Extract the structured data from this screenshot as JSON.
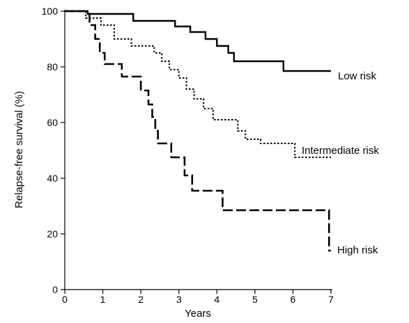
{
  "chart_data": {
    "type": "line",
    "step": true,
    "title": "",
    "xlabel": "Years",
    "ylabel": "Relapse-free survival (%)",
    "xlim": [
      0,
      7
    ],
    "ylim": [
      0,
      100
    ],
    "xticks": [
      0,
      1,
      2,
      3,
      4,
      5,
      6,
      7
    ],
    "yticks": [
      0,
      20,
      40,
      60,
      80,
      100
    ],
    "grid": false,
    "legend": "inline labels at line ends",
    "series": [
      {
        "name": "Low risk",
        "line_style": "solid",
        "color": "#000000",
        "points": [
          [
            0,
            100
          ],
          [
            0.6,
            100
          ],
          [
            0.6,
            99
          ],
          [
            1.8,
            99
          ],
          [
            1.8,
            96.5
          ],
          [
            2.9,
            96.5
          ],
          [
            2.9,
            94.5
          ],
          [
            3.3,
            94.5
          ],
          [
            3.3,
            92.5
          ],
          [
            3.7,
            92.5
          ],
          [
            3.7,
            90
          ],
          [
            4.0,
            90
          ],
          [
            4.0,
            87.5
          ],
          [
            4.3,
            87.5
          ],
          [
            4.3,
            85
          ],
          [
            4.45,
            85
          ],
          [
            4.45,
            82
          ],
          [
            5.75,
            82
          ],
          [
            5.75,
            78.5
          ],
          [
            7.0,
            78.5
          ]
        ]
      },
      {
        "name": "Intermediate risk",
        "line_style": "dotted",
        "color": "#000000",
        "points": [
          [
            0,
            100
          ],
          [
            0.55,
            100
          ],
          [
            0.55,
            97.5
          ],
          [
            0.95,
            97.5
          ],
          [
            0.95,
            95
          ],
          [
            1.3,
            95
          ],
          [
            1.3,
            90
          ],
          [
            1.75,
            90
          ],
          [
            1.75,
            87.5
          ],
          [
            2.35,
            87.5
          ],
          [
            2.35,
            85
          ],
          [
            2.55,
            85
          ],
          [
            2.55,
            82
          ],
          [
            2.75,
            82
          ],
          [
            2.75,
            79
          ],
          [
            3.0,
            79
          ],
          [
            3.0,
            76
          ],
          [
            3.2,
            76
          ],
          [
            3.2,
            72
          ],
          [
            3.4,
            72
          ],
          [
            3.4,
            68.5
          ],
          [
            3.65,
            68.5
          ],
          [
            3.65,
            65
          ],
          [
            3.9,
            65
          ],
          [
            3.9,
            61
          ],
          [
            4.55,
            61
          ],
          [
            4.55,
            57
          ],
          [
            4.75,
            57
          ],
          [
            4.75,
            54
          ],
          [
            5.15,
            54
          ],
          [
            5.15,
            52.5
          ],
          [
            6.05,
            52.5
          ],
          [
            6.05,
            47.5
          ],
          [
            7.0,
            47.5
          ]
        ]
      },
      {
        "name": "High risk",
        "line_style": "dashed",
        "color": "#000000",
        "points": [
          [
            0,
            100
          ],
          [
            0.65,
            100
          ],
          [
            0.65,
            95
          ],
          [
            0.8,
            95
          ],
          [
            0.8,
            90
          ],
          [
            0.92,
            90
          ],
          [
            0.92,
            85
          ],
          [
            1.05,
            85
          ],
          [
            1.05,
            81
          ],
          [
            1.5,
            81
          ],
          [
            1.5,
            76.5
          ],
          [
            2.0,
            76.5
          ],
          [
            2.0,
            71.5
          ],
          [
            2.2,
            71.5
          ],
          [
            2.2,
            66.5
          ],
          [
            2.3,
            66.5
          ],
          [
            2.3,
            62
          ],
          [
            2.38,
            62
          ],
          [
            2.38,
            57
          ],
          [
            2.45,
            57
          ],
          [
            2.45,
            52.5
          ],
          [
            2.8,
            52.5
          ],
          [
            2.8,
            47.5
          ],
          [
            3.15,
            47.5
          ],
          [
            3.15,
            41
          ],
          [
            3.35,
            41
          ],
          [
            3.35,
            35.5
          ],
          [
            4.15,
            35.5
          ],
          [
            4.15,
            28.5
          ],
          [
            6.95,
            28.5
          ],
          [
            6.95,
            14
          ],
          [
            7.0,
            14
          ]
        ]
      }
    ]
  }
}
